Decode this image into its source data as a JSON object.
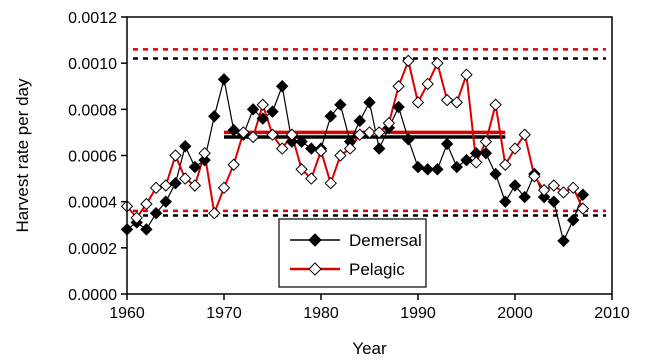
{
  "chart_data": {
    "type": "line",
    "title": "",
    "xlabel": "Year",
    "ylabel": "Harvest rate per day",
    "xlim": [
      1960,
      2010
    ],
    "ylim": [
      0,
      0.0012
    ],
    "xticks": [
      1960,
      1970,
      1980,
      1990,
      2000,
      2010
    ],
    "xtick_labels": [
      "1960",
      "1970",
      "1980",
      "1990",
      "2000",
      "2010"
    ],
    "yticks": [
      0,
      0.0002,
      0.0004,
      0.0006,
      0.0008,
      0.001,
      0.0012
    ],
    "ytick_labels": [
      "0.0000",
      "0.0002",
      "0.0004",
      "0.0006",
      "0.0008",
      "0.0010",
      "0.0012"
    ],
    "grid": false,
    "legend_position": "bottom-center",
    "series": [
      {
        "name": "Demersal",
        "color": "#000000",
        "marker": "filled-diamond",
        "x": [
          1960,
          1961,
          1962,
          1963,
          1964,
          1965,
          1966,
          1967,
          1968,
          1969,
          1970,
          1971,
          1972,
          1973,
          1974,
          1975,
          1976,
          1977,
          1978,
          1979,
          1980,
          1981,
          1982,
          1983,
          1984,
          1985,
          1986,
          1987,
          1988,
          1989,
          1990,
          1991,
          1992,
          1993,
          1994,
          1995,
          1996,
          1997,
          1998,
          1999,
          2000,
          2001,
          2002,
          2003,
          2004,
          2005,
          2006,
          2007
        ],
        "y": [
          0.00028,
          0.00031,
          0.00028,
          0.00035,
          0.0004,
          0.00048,
          0.00064,
          0.00055,
          0.00058,
          0.00077,
          0.00093,
          0.00071,
          0.00069,
          0.0008,
          0.00076,
          0.00079,
          0.0009,
          0.00066,
          0.00066,
          0.00063,
          0.00063,
          0.00077,
          0.00082,
          0.00066,
          0.00075,
          0.00083,
          0.00063,
          0.00072,
          0.00081,
          0.00067,
          0.00055,
          0.00054,
          0.00054,
          0.00065,
          0.00055,
          0.00058,
          0.00061,
          0.00061,
          0.00052,
          0.0004,
          0.00047,
          0.00042,
          0.00052,
          0.00042,
          0.0004,
          0.00023,
          0.00032,
          0.00043
        ]
      },
      {
        "name": "Pelagic",
        "color": "#dd0000",
        "marker": "open-diamond",
        "x": [
          1960,
          1961,
          1962,
          1963,
          1964,
          1965,
          1966,
          1967,
          1968,
          1969,
          1970,
          1971,
          1972,
          1973,
          1974,
          1975,
          1976,
          1977,
          1978,
          1979,
          1980,
          1981,
          1982,
          1983,
          1984,
          1985,
          1986,
          1987,
          1988,
          1989,
          1990,
          1991,
          1992,
          1993,
          1994,
          1995,
          1996,
          1997,
          1998,
          1999,
          2000,
          2001,
          2002,
          2003,
          2004,
          2005,
          2006,
          2007
        ],
        "y": [
          0.00038,
          0.00033,
          0.00039,
          0.00046,
          0.00047,
          0.0006,
          0.0005,
          0.00047,
          0.00061,
          0.00035,
          0.00046,
          0.00056,
          0.0007,
          0.00068,
          0.00082,
          0.00069,
          0.00063,
          0.00069,
          0.00054,
          0.0005,
          0.00062,
          0.00048,
          0.0006,
          0.00063,
          0.00069,
          0.0007,
          0.0007,
          0.00074,
          0.0009,
          0.00101,
          0.00083,
          0.00091,
          0.001,
          0.00084,
          0.00083,
          0.00095,
          0.00057,
          0.00066,
          0.00082,
          0.00056,
          0.00063,
          0.00069,
          0.00051,
          0.00045,
          0.00047,
          0.00044,
          0.00046,
          0.00037
        ]
      }
    ],
    "reference_lines": [
      {
        "series": "Demersal",
        "kind": "mean",
        "x_range": [
          1970,
          1999
        ],
        "y": 0.00068
      },
      {
        "series": "Pelagic",
        "kind": "mean",
        "x_range": [
          1970,
          1999
        ],
        "y": 0.0007
      },
      {
        "series": "Demersal",
        "kind": "bound-dashed",
        "y": 0.00102
      },
      {
        "series": "Pelagic",
        "kind": "bound-dashed",
        "y": 0.00106
      },
      {
        "series": "Pelagic",
        "kind": "bound-dashed",
        "y": 0.00036
      },
      {
        "series": "Demersal",
        "kind": "bound-dashed",
        "y": 0.00034
      }
    ]
  }
}
